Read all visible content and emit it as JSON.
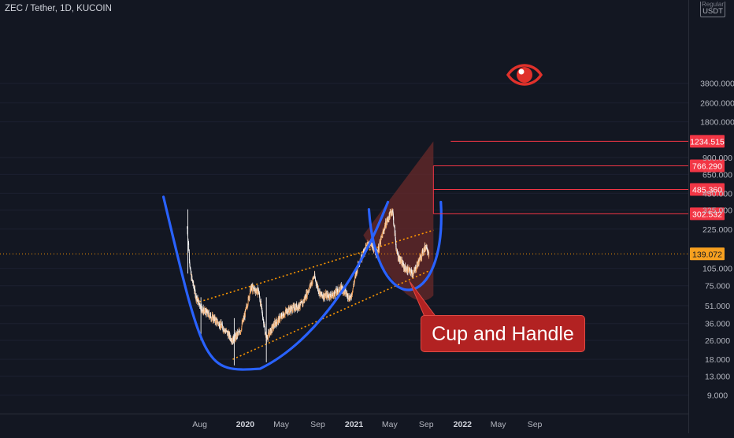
{
  "chart": {
    "title": "ZEC / Tether, 1D, KUCOIN",
    "currency": "USDT",
    "currency_hint": "Regular",
    "annotation": "Cup and Handle",
    "colors": {
      "background": "#131722",
      "candle_up": "#f0a15b",
      "candle_down": "#f5f5f5",
      "cup": "#2962ff",
      "channel": "#ff9800",
      "target_line": "#f23645",
      "projection_fill": "#6b2a2a",
      "label_bg": "#b22222"
    },
    "icons": {
      "watch": "eye-icon"
    }
  },
  "chart_data": {
    "type": "candlestick",
    "title": "ZEC / Tether, 1D, KUCOIN",
    "y_scale": "log",
    "ylim": [
      7.5,
      3900
    ],
    "y_ticks": [
      "3800.000",
      "2600.000",
      "1800.000",
      "1234.515",
      "900.000",
      "766.290",
      "650.000",
      "485.360",
      "450.000",
      "325.000",
      "302.532",
      "225.000",
      "139.072",
      "105.000",
      "75.000",
      "51.000",
      "36.000",
      "26.000",
      "18.000",
      "13.000",
      "9.000"
    ],
    "x_ticks": [
      "Aug",
      "2020",
      "May",
      "Sep",
      "2021",
      "May",
      "Sep",
      "2022",
      "May",
      "Sep"
    ],
    "current_price": 139.072,
    "targets": [
      1234.515,
      766.29,
      485.36,
      302.532
    ],
    "price_path": [
      {
        "date": "2019-06-20",
        "price": 230
      },
      {
        "date": "2019-07-01",
        "price": 95
      },
      {
        "date": "2019-07-20",
        "price": 60
      },
      {
        "date": "2019-08-10",
        "price": 47
      },
      {
        "date": "2019-09-15",
        "price": 40
      },
      {
        "date": "2019-10-20",
        "price": 33
      },
      {
        "date": "2019-11-20",
        "price": 26
      },
      {
        "date": "2019-12-15",
        "price": 31
      },
      {
        "date": "2019-12-31",
        "price": 43
      },
      {
        "date": "2020-01-20",
        "price": 72
      },
      {
        "date": "2020-02-15",
        "price": 67
      },
      {
        "date": "2020-03-12",
        "price": 27
      },
      {
        "date": "2020-04-10",
        "price": 36
      },
      {
        "date": "2020-05-20",
        "price": 46
      },
      {
        "date": "2020-07-10",
        "price": 52
      },
      {
        "date": "2020-08-20",
        "price": 90
      },
      {
        "date": "2020-09-10",
        "price": 62
      },
      {
        "date": "2020-10-20",
        "price": 62
      },
      {
        "date": "2020-11-20",
        "price": 72
      },
      {
        "date": "2020-12-20",
        "price": 58
      },
      {
        "date": "2021-01-15",
        "price": 115
      },
      {
        "date": "2021-02-20",
        "price": 175
      },
      {
        "date": "2021-03-20",
        "price": 140
      },
      {
        "date": "2021-04-15",
        "price": 240
      },
      {
        "date": "2021-05-10",
        "price": 330
      },
      {
        "date": "2021-05-25",
        "price": 140
      },
      {
        "date": "2021-06-20",
        "price": 105
      },
      {
        "date": "2021-07-20",
        "price": 95
      },
      {
        "date": "2021-08-15",
        "price": 135
      },
      {
        "date": "2021-09-01",
        "price": 165
      },
      {
        "date": "2021-09-10",
        "price": 139
      }
    ],
    "channel_lower": [
      {
        "date": "2019-11-20",
        "price": 18
      },
      {
        "date": "2021-09-10",
        "price": 100
      }
    ],
    "channel_upper": [
      {
        "date": "2019-08-01",
        "price": 55
      },
      {
        "date": "2021-09-25",
        "price": 220
      }
    ],
    "cup_points": [
      {
        "date": "2019-04-01",
        "price": 420
      },
      {
        "date": "2019-08-15",
        "price": 28
      },
      {
        "date": "2020-02-20",
        "price": 15
      },
      {
        "date": "2020-09-15",
        "price": 27
      },
      {
        "date": "2021-01-01",
        "price": 70
      },
      {
        "date": "2021-04-25",
        "price": 380
      }
    ],
    "handle_points": [
      {
        "date": "2021-02-20",
        "price": 330
      },
      {
        "date": "2021-07-01",
        "price": 80
      },
      {
        "date": "2021-10-20",
        "price": 380
      }
    ],
    "projection": {
      "apex": {
        "date": "2021-09-25",
        "price": 1234.515
      },
      "base": [
        {
          "date": "2021-02-01",
          "price": 200
        },
        {
          "date": "2021-09-25",
          "price": 62
        }
      ]
    }
  }
}
